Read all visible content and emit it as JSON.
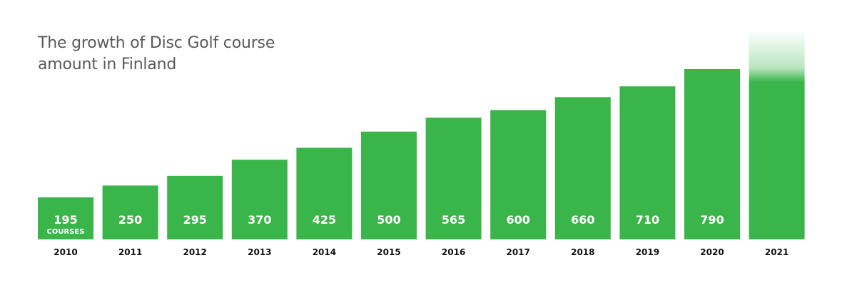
{
  "title_line1": "The growth of Disc Golf course",
  "title_line2": "amount in Finland",
  "chart_data": {
    "type": "bar",
    "title": "The growth of Disc Golf course amount in Finland",
    "categories": [
      "2010",
      "2011",
      "2012",
      "2013",
      "2014",
      "2015",
      "2016",
      "2017",
      "2018",
      "2019",
      "2020",
      "2021"
    ],
    "values": [
      195,
      250,
      295,
      370,
      425,
      500,
      565,
      600,
      660,
      710,
      790,
      null
    ],
    "value_labels": [
      "195",
      "250",
      "295",
      "370",
      "425",
      "500",
      "565",
      "600",
      "660",
      "710",
      "790",
      ""
    ],
    "first_bar_unit": "COURSES",
    "bar_color": "#3ab54a",
    "last_bar_style": "gradient fade to white at top",
    "grid": false,
    "legend": "none"
  }
}
